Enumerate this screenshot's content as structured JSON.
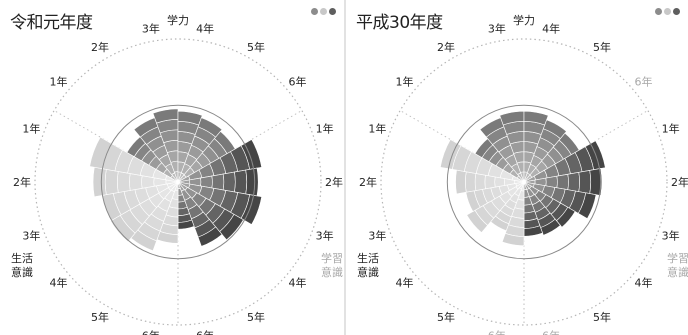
{
  "colors": {
    "gakuryoku": "#7a7a7a",
    "seikatsu": "#454545",
    "gakushu": "#d2d2d2",
    "dim_label": "#a8a8a8",
    "ring": "#8a8a8a",
    "dots": [
      "#8c8c8c",
      "#c8c8c8",
      "#5e5e5e"
    ]
  },
  "chart_data": [
    {
      "type": "radar",
      "title": "令和元年度",
      "group_labels": {
        "gakuryoku": "学力",
        "seikatsu": "生活\n意識",
        "gakushu": "学習\n意識"
      },
      "max_value": 100,
      "inner_ring": 65,
      "levels": 7,
      "sectors": [
        {
          "group": "gakuryoku",
          "grade": "1年",
          "value": 50,
          "dim": false
        },
        {
          "group": "gakuryoku",
          "grade": "2年",
          "value": 58,
          "dim": false
        },
        {
          "group": "gakuryoku",
          "grade": "3年",
          "value": 62,
          "dim": false
        },
        {
          "group": "gakuryoku",
          "grade": "4年",
          "value": 60,
          "dim": false
        },
        {
          "group": "gakuryoku",
          "grade": "5年",
          "value": 58,
          "dim": false
        },
        {
          "group": "gakuryoku",
          "grade": "6年",
          "value": 56,
          "dim": false
        },
        {
          "group": "seikatsu",
          "grade": "1年",
          "value": 72,
          "dim": false
        },
        {
          "group": "seikatsu",
          "grade": "2年",
          "value": 68,
          "dim": false
        },
        {
          "group": "seikatsu",
          "grade": "3年",
          "value": 72,
          "dim": false
        },
        {
          "group": "seikatsu",
          "grade": "4年",
          "value": 64,
          "dim": false
        },
        {
          "group": "seikatsu",
          "grade": "5年",
          "value": 58,
          "dim": false
        },
        {
          "group": "seikatsu",
          "grade": "6年",
          "value": 40,
          "dim": false
        },
        {
          "group": "gakushu",
          "grade": "6年",
          "value": 52,
          "dim": false
        },
        {
          "group": "gakushu",
          "grade": "5年",
          "value": 62,
          "dim": false
        },
        {
          "group": "gakushu",
          "grade": "4年",
          "value": 66,
          "dim": false
        },
        {
          "group": "gakushu",
          "grade": "3年",
          "value": 65,
          "dim": false
        },
        {
          "group": "gakushu",
          "grade": "2年",
          "value": 72,
          "dim": false
        },
        {
          "group": "gakushu",
          "grade": "1年",
          "value": 76,
          "dim": false
        }
      ]
    },
    {
      "type": "radar",
      "title": "平成30年度",
      "group_labels": {
        "gakuryoku": "学力",
        "seikatsu": "生活\n意識",
        "gakushu": "学習\n意識"
      },
      "max_value": 100,
      "inner_ring": 65,
      "levels": 7,
      "sectors": [
        {
          "group": "gakuryoku",
          "grade": "1年",
          "value": 48,
          "dim": false
        },
        {
          "group": "gakuryoku",
          "grade": "2年",
          "value": 58,
          "dim": false
        },
        {
          "group": "gakuryoku",
          "grade": "3年",
          "value": 60,
          "dim": false
        },
        {
          "group": "gakuryoku",
          "grade": "4年",
          "value": 60,
          "dim": false
        },
        {
          "group": "gakuryoku",
          "grade": "5年",
          "value": 56,
          "dim": false
        },
        {
          "group": "gakuryoku",
          "grade": "6年",
          "value": 54,
          "dim": true
        },
        {
          "group": "seikatsu",
          "grade": "1年",
          "value": 70,
          "dim": false
        },
        {
          "group": "seikatsu",
          "grade": "2年",
          "value": 66,
          "dim": false
        },
        {
          "group": "seikatsu",
          "grade": "3年",
          "value": 62,
          "dim": false
        },
        {
          "group": "seikatsu",
          "grade": "4年",
          "value": 50,
          "dim": false
        },
        {
          "group": "seikatsu",
          "grade": "5年",
          "value": 48,
          "dim": false
        },
        {
          "group": "seikatsu",
          "grade": "6年",
          "value": 46,
          "dim": true
        },
        {
          "group": "gakushu",
          "grade": "6年",
          "value": 54,
          "dim": true
        },
        {
          "group": "gakushu",
          "grade": "5年",
          "value": 44,
          "dim": false
        },
        {
          "group": "gakushu",
          "grade": "4年",
          "value": 56,
          "dim": false
        },
        {
          "group": "gakushu",
          "grade": "3年",
          "value": 50,
          "dim": false
        },
        {
          "group": "gakushu",
          "grade": "2年",
          "value": 58,
          "dim": false
        },
        {
          "group": "gakushu",
          "grade": "1年",
          "value": 72,
          "dim": false
        }
      ]
    }
  ]
}
